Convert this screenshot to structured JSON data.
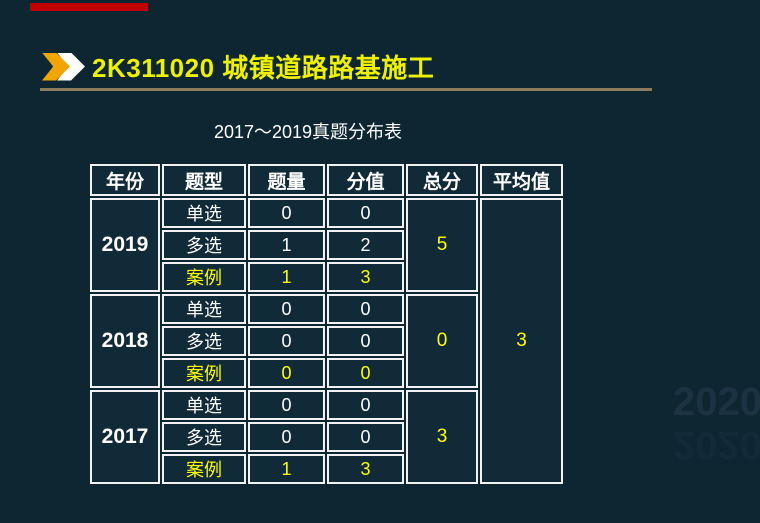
{
  "colors": {
    "background": "#0d2632",
    "accent_red": "#c00000",
    "title_yellow": "#eef000",
    "value_yellow": "#ffff00",
    "chevron_orange": "#f0a500",
    "underline": "#8a7c5c",
    "table_border": "#f2f2f2",
    "watermark": "#1c3242"
  },
  "slide": {
    "title": "2K311020 城镇道路路基施工",
    "subtitle": "2017～2019真题分布表",
    "watermark": "2020"
  },
  "table": {
    "headers": [
      "年份",
      "题型",
      "题量",
      "分值",
      "总分",
      "平均值"
    ],
    "average_value": "3",
    "year_blocks": [
      {
        "year": "2019",
        "total": "5",
        "rows": [
          {
            "type": "单选",
            "count": "0",
            "score": "0",
            "highlight": false
          },
          {
            "type": "多选",
            "count": "1",
            "score": "2",
            "highlight": false
          },
          {
            "type": "案例",
            "count": "1",
            "score": "3",
            "highlight": true
          }
        ]
      },
      {
        "year": "2018",
        "total": "0",
        "rows": [
          {
            "type": "单选",
            "count": "0",
            "score": "0",
            "highlight": false
          },
          {
            "type": "多选",
            "count": "0",
            "score": "0",
            "highlight": false
          },
          {
            "type": "案例",
            "count": "0",
            "score": "0",
            "highlight": true
          }
        ]
      },
      {
        "year": "2017",
        "total": "3",
        "rows": [
          {
            "type": "单选",
            "count": "0",
            "score": "0",
            "highlight": false
          },
          {
            "type": "多选",
            "count": "0",
            "score": "0",
            "highlight": false
          },
          {
            "type": "案例",
            "count": "1",
            "score": "3",
            "highlight": true
          }
        ]
      }
    ]
  }
}
